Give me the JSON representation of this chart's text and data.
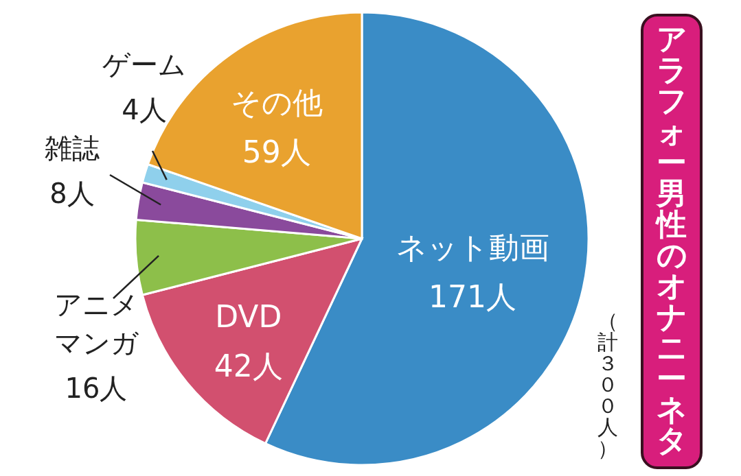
{
  "chart_data": {
    "type": "pie",
    "title": "アラフォー男性のオナニーネタ",
    "categories": [
      "ネット動画",
      "DVD",
      "アニメマンガ",
      "雑誌",
      "ゲーム",
      "その他"
    ],
    "values": [
      171,
      42,
      16,
      8,
      4,
      59
    ],
    "value_labels": [
      "171人",
      "42人",
      "16人",
      "8人",
      "4人",
      "59人"
    ],
    "colors": [
      "#3a8cc6",
      "#d2506f",
      "#8dbf4a",
      "#8a4a9c",
      "#8fd0ec",
      "#e9a22f"
    ],
    "annotations": [
      "（計３００人）"
    ]
  }
}
